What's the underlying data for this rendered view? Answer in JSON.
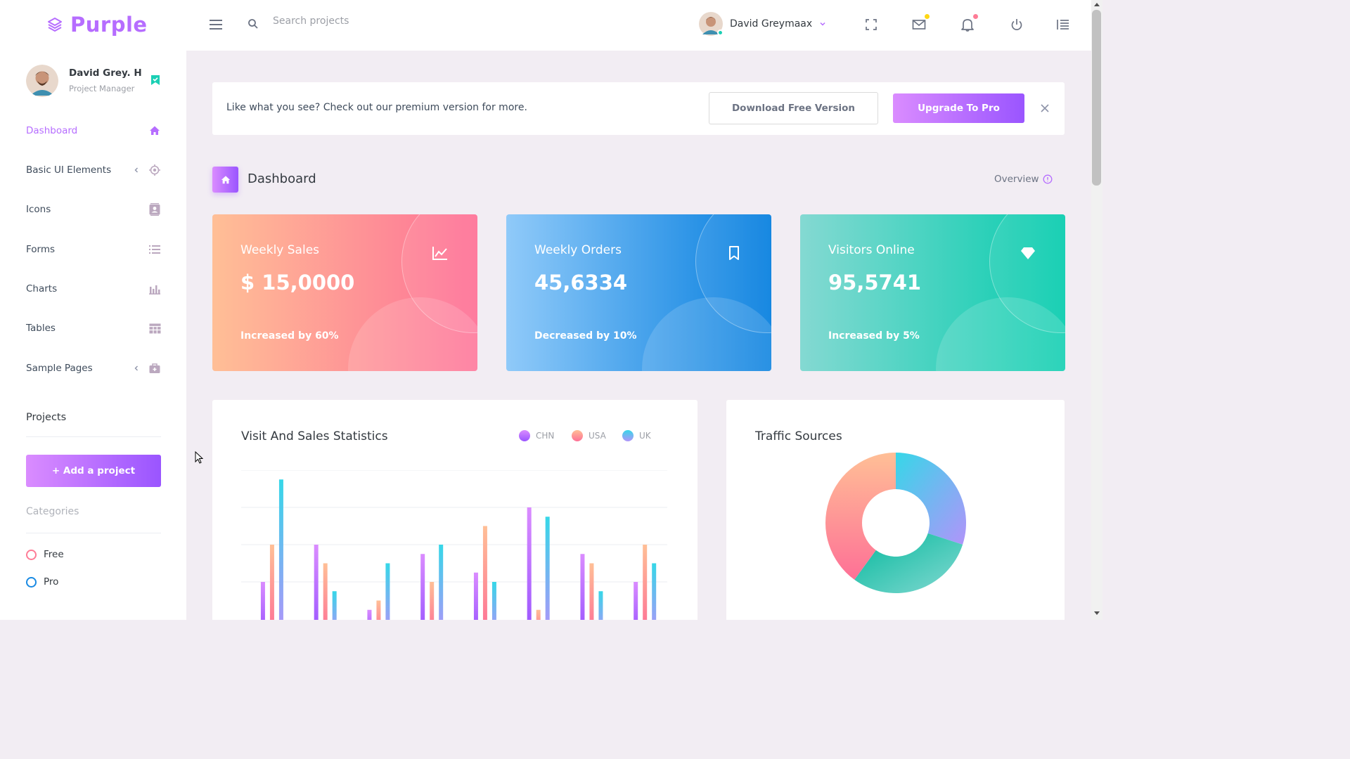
{
  "brand": {
    "name": "Purple"
  },
  "search": {
    "placeholder": "Search projects"
  },
  "header": {
    "user_name": "David Greymaax"
  },
  "sidebar": {
    "profile": {
      "name": "David Grey. H",
      "role": "Project Manager"
    },
    "items": [
      {
        "label": "Dashboard",
        "icon": "home-icon",
        "active": true
      },
      {
        "label": "Basic UI Elements",
        "icon": "crosshairs-icon"
      },
      {
        "label": "Icons",
        "icon": "contacts-icon"
      },
      {
        "label": "Forms",
        "icon": "list-icon"
      },
      {
        "label": "Charts",
        "icon": "bar-chart-icon"
      },
      {
        "label": "Tables",
        "icon": "table-icon"
      },
      {
        "label": "Sample Pages",
        "icon": "medical-bag-icon"
      }
    ],
    "projects_title": "Projects",
    "add_project": "+ Add a project",
    "categories_title": "Categories",
    "categories": [
      {
        "label": "Free",
        "color": "#fe7c96"
      },
      {
        "label": "Pro",
        "color": "#198ae3"
      }
    ]
  },
  "banner": {
    "text": "Like what you see? Check out our premium version for more.",
    "download_label": "Download Free Version",
    "upgrade_label": "Upgrade To Pro"
  },
  "page": {
    "title": "Dashboard",
    "overview": "Overview"
  },
  "stats": [
    {
      "title": "Weekly Sales",
      "value": "$ 15,0000",
      "sub": "Increased by 60%",
      "icon": "chart-line-icon"
    },
    {
      "title": "Weekly Orders",
      "value": "45,6334",
      "sub": "Decreased by 10%",
      "icon": "bookmark-icon"
    },
    {
      "title": "Visitors Online",
      "value": "95,5741",
      "sub": "Increased by 5%",
      "icon": "diamond-icon"
    }
  ],
  "colors": {
    "accent": "#b66dff",
    "chn": "#9a55ff",
    "usa": "#fe7096",
    "uk": "#36d7e8"
  },
  "chart_data": [
    {
      "type": "bar",
      "title": "Visit And Sales Statistics",
      "series": [
        {
          "name": "CHN",
          "values": [
            20,
            40,
            5,
            35,
            25,
            60,
            35,
            20
          ]
        },
        {
          "name": "USA",
          "values": [
            40,
            30,
            10,
            20,
            50,
            5,
            30,
            40
          ]
        },
        {
          "name": "UK",
          "values": [
            75,
            15,
            30,
            40,
            20,
            55,
            15,
            30
          ]
        }
      ],
      "ylim": [
        0,
        80
      ],
      "grid": true,
      "legend": "top-right"
    },
    {
      "type": "pie",
      "title": "Traffic Sources",
      "values": [
        30,
        30,
        40
      ],
      "colors": [
        "#36d7e8",
        "#1bcfb4",
        "#fe7096"
      ]
    }
  ]
}
